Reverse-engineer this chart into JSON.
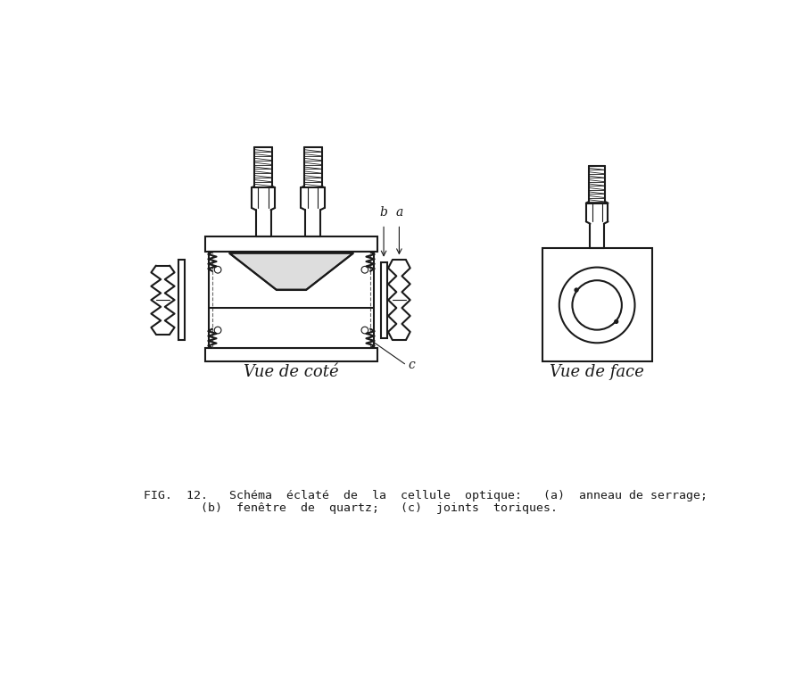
{
  "bg_color": "#ffffff",
  "line_color": "#1a1a1a",
  "caption_line1": "FIG.  12.   Schéma  éclaté  de  la  cellule  optique:   (a)  anneau de serrage;",
  "caption_line2": "        (b)  fenêtre  de  quartz;   (c)  joints  toriques.",
  "label_vue_cote": "Vue de coté",
  "label_vue_face": "Vue de face",
  "label_a": "a",
  "label_b": "b",
  "label_c": "c"
}
